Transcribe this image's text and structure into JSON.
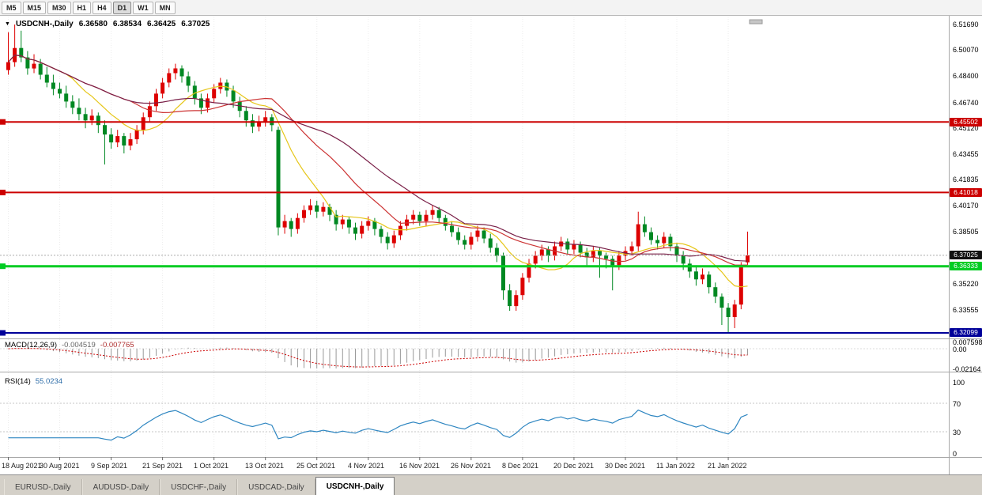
{
  "icons": {
    "chart_menu": "▼"
  },
  "toolbar": {
    "timeframes": [
      "M5",
      "M15",
      "M30",
      "H1",
      "H4",
      "D1",
      "W1",
      "MN"
    ],
    "active": "D1"
  },
  "chart_title": {
    "symbol": "USDCNH-,Daily",
    "open": "6.36580",
    "high": "6.38534",
    "low": "6.36425",
    "close": "6.37025"
  },
  "price_axis": {
    "labels": [
      {
        "text": "6.51690",
        "value": 6.5169
      },
      {
        "text": "6.50070",
        "value": 6.5007
      },
      {
        "text": "6.48400",
        "value": 6.484
      },
      {
        "text": "6.46740",
        "value": 6.4674
      },
      {
        "text": "6.45120",
        "value": 6.4512
      },
      {
        "text": "6.43455",
        "value": 6.43455
      },
      {
        "text": "6.41835",
        "value": 6.41835
      },
      {
        "text": "6.40170",
        "value": 6.4017
      },
      {
        "text": "6.38505",
        "value": 6.38505
      },
      {
        "text": "6.35220",
        "value": 6.3522
      },
      {
        "text": "6.33555",
        "value": 6.33555
      }
    ],
    "badges": [
      {
        "text": "6.45502",
        "value": 6.45502,
        "bg": "#cc0000",
        "fg": "#ffffff",
        "name": "resistance-1"
      },
      {
        "text": "6.41018",
        "value": 6.41018,
        "bg": "#cc0000",
        "fg": "#ffffff",
        "name": "resistance-2"
      },
      {
        "text": "6.37025",
        "value": 6.37025,
        "bg": "#111111",
        "fg": "#ffffff",
        "name": "current-price"
      },
      {
        "text": "6.36333",
        "value": 6.36333,
        "bg": "#00cc22",
        "fg": "#ffffff",
        "name": "support-1"
      },
      {
        "text": "6.32099",
        "value": 6.32099,
        "bg": "#000099",
        "fg": "#ffffff",
        "name": "support-2"
      }
    ]
  },
  "hlines": [
    {
      "value": 6.45502,
      "color": "#cc0000",
      "width": 2,
      "style": "solid",
      "name": "resistance-line-6-45502"
    },
    {
      "value": 6.41018,
      "color": "#cc0000",
      "width": 2,
      "style": "solid",
      "name": "resistance-line-6-41018"
    },
    {
      "value": 6.37025,
      "color": "#aaaaaa",
      "width": 1,
      "style": "dotted",
      "name": "current-price-line"
    },
    {
      "value": 6.36333,
      "color": "#00cc22",
      "width": 3,
      "style": "solid",
      "name": "support-line-6-36333"
    },
    {
      "value": 6.32099,
      "color": "#000099",
      "width": 2,
      "style": "solid",
      "name": "support-line-6-32099"
    }
  ],
  "chart_data": {
    "type": "candlestick",
    "title": "USDCNH-,Daily",
    "up_color": "#dd0000",
    "down_color": "#008822",
    "ylim": [
      6.3175,
      6.5224
    ],
    "x_labels": [
      "18 Aug 2021",
      "30 Aug 2021",
      "9 Sep 2021",
      "21 Sep 2021",
      "1 Oct 2021",
      "13 Oct 2021",
      "25 Oct 2021",
      "4 Nov 2021",
      "16 Nov 2021",
      "26 Nov 2021",
      "8 Dec 2021",
      "20 Dec 2021",
      "30 Dec 2021",
      "11 Jan 2022",
      "21 Jan 2022"
    ],
    "x_label_indices": [
      0,
      8,
      16,
      24,
      32,
      40,
      48,
      56,
      64,
      72,
      80,
      88,
      96,
      104,
      112
    ],
    "moving_averages": [
      {
        "period": 10,
        "color": "#e6c619"
      },
      {
        "period": 20,
        "color": "#cc3333"
      },
      {
        "period": 30,
        "color": "#7a2048"
      }
    ],
    "candles": [
      [
        6.488,
        6.512,
        6.485,
        6.493
      ],
      [
        6.493,
        6.5169,
        6.49,
        6.502
      ],
      [
        6.502,
        6.513,
        6.493,
        6.496
      ],
      [
        6.496,
        6.5,
        6.485,
        6.489
      ],
      [
        6.489,
        6.498,
        6.486,
        6.492
      ],
      [
        6.492,
        6.495,
        6.482,
        6.485
      ],
      [
        6.485,
        6.49,
        6.477,
        6.48
      ],
      [
        6.48,
        6.485,
        6.472,
        6.476
      ],
      [
        6.476,
        6.48,
        6.47,
        6.473
      ],
      [
        6.473,
        6.478,
        6.464,
        6.468
      ],
      [
        6.468,
        6.472,
        6.46,
        6.464
      ],
      [
        6.464,
        6.47,
        6.456,
        6.46
      ],
      [
        6.46,
        6.464,
        6.451,
        6.456
      ],
      [
        6.456,
        6.463,
        6.453,
        6.459
      ],
      [
        6.459,
        6.461,
        6.448,
        6.453
      ],
      [
        6.453,
        6.456,
        6.428,
        6.447
      ],
      [
        6.447,
        6.451,
        6.438,
        6.442
      ],
      [
        6.442,
        6.45,
        6.439,
        6.446
      ],
      [
        6.446,
        6.448,
        6.435,
        6.44
      ],
      [
        6.44,
        6.448,
        6.437,
        6.444
      ],
      [
        6.444,
        6.453,
        6.441,
        6.45
      ],
      [
        6.45,
        6.461,
        6.447,
        6.458
      ],
      [
        6.458,
        6.468,
        6.455,
        6.465
      ],
      [
        6.465,
        6.476,
        6.462,
        6.473
      ],
      [
        6.473,
        6.483,
        6.47,
        6.48
      ],
      [
        6.48,
        6.489,
        6.477,
        6.486
      ],
      [
        6.486,
        6.492,
        6.482,
        6.489
      ],
      [
        6.489,
        6.491,
        6.48,
        6.484
      ],
      [
        6.484,
        6.487,
        6.474,
        6.478
      ],
      [
        6.478,
        6.481,
        6.466,
        6.47
      ],
      [
        6.47,
        6.473,
        6.46,
        6.464
      ],
      [
        6.464,
        6.473,
        6.461,
        6.47
      ],
      [
        6.47,
        6.479,
        6.467,
        6.476
      ],
      [
        6.476,
        6.483,
        6.473,
        6.48
      ],
      [
        6.48,
        6.482,
        6.471,
        6.475
      ],
      [
        6.475,
        6.478,
        6.464,
        6.468
      ],
      [
        6.468,
        6.471,
        6.458,
        6.462
      ],
      [
        6.462,
        6.465,
        6.452,
        6.456
      ],
      [
        6.456,
        6.46,
        6.448,
        6.452
      ],
      [
        6.452,
        6.459,
        6.449,
        6.455
      ],
      [
        6.455,
        6.462,
        6.452,
        6.458
      ],
      [
        6.458,
        6.46,
        6.449,
        6.453
      ],
      [
        6.45,
        6.452,
        6.383,
        6.388
      ],
      [
        6.388,
        6.396,
        6.384,
        6.392
      ],
      [
        6.392,
        6.394,
        6.382,
        6.387
      ],
      [
        6.387,
        6.397,
        6.384,
        6.394
      ],
      [
        6.394,
        6.402,
        6.391,
        6.399
      ],
      [
        6.399,
        6.406,
        6.396,
        6.402
      ],
      [
        6.402,
        6.405,
        6.394,
        6.398
      ],
      [
        6.398,
        6.404,
        6.395,
        6.401
      ],
      [
        6.401,
        6.403,
        6.392,
        6.396
      ],
      [
        6.396,
        6.399,
        6.386,
        6.39
      ],
      [
        6.39,
        6.396,
        6.387,
        6.393
      ],
      [
        6.393,
        6.395,
        6.384,
        6.388
      ],
      [
        6.388,
        6.391,
        6.38,
        6.384
      ],
      [
        6.384,
        6.392,
        6.381,
        6.389
      ],
      [
        6.389,
        6.395,
        6.386,
        6.392
      ],
      [
        6.392,
        6.394,
        6.383,
        6.387
      ],
      [
        6.387,
        6.389,
        6.378,
        6.382
      ],
      [
        6.382,
        6.385,
        6.374,
        6.378
      ],
      [
        6.378,
        6.386,
        6.375,
        6.383
      ],
      [
        6.383,
        6.392,
        6.38,
        6.389
      ],
      [
        6.389,
        6.396,
        6.386,
        6.393
      ],
      [
        6.393,
        6.399,
        6.39,
        6.396
      ],
      [
        6.396,
        6.398,
        6.389,
        6.392
      ],
      [
        6.392,
        6.399,
        6.389,
        6.396
      ],
      [
        6.396,
        6.402,
        6.393,
        6.399
      ],
      [
        6.399,
        6.401,
        6.391,
        6.394
      ],
      [
        6.394,
        6.396,
        6.386,
        6.389
      ],
      [
        6.389,
        6.392,
        6.382,
        6.385
      ],
      [
        6.385,
        6.388,
        6.377,
        6.38
      ],
      [
        6.38,
        6.383,
        6.374,
        6.377
      ],
      [
        6.377,
        6.385,
        6.374,
        6.382
      ],
      [
        6.382,
        6.389,
        6.379,
        6.386
      ],
      [
        6.386,
        6.388,
        6.378,
        6.381
      ],
      [
        6.381,
        6.384,
        6.372,
        6.375
      ],
      [
        6.375,
        6.378,
        6.366,
        6.37
      ],
      [
        6.37,
        6.372,
        6.342,
        6.348
      ],
      [
        6.348,
        6.352,
        6.335,
        6.338
      ],
      [
        6.338,
        6.348,
        6.335,
        6.345
      ],
      [
        6.345,
        6.359,
        6.342,
        6.356
      ],
      [
        6.356,
        6.368,
        6.353,
        6.365
      ],
      [
        6.365,
        6.373,
        6.362,
        6.37
      ],
      [
        6.37,
        6.377,
        6.367,
        6.374
      ],
      [
        6.374,
        6.376,
        6.366,
        6.37
      ],
      [
        6.37,
        6.379,
        6.367,
        6.376
      ],
      [
        6.376,
        6.382,
        6.373,
        6.379
      ],
      [
        6.379,
        6.381,
        6.371,
        6.374
      ],
      [
        6.374,
        6.38,
        6.371,
        6.377
      ],
      [
        6.377,
        6.379,
        6.369,
        6.372
      ],
      [
        6.372,
        6.375,
        6.364,
        6.369
      ],
      [
        6.369,
        6.376,
        6.366,
        6.373
      ],
      [
        6.373,
        6.375,
        6.356,
        6.37
      ],
      [
        6.37,
        6.372,
        6.362,
        6.368
      ],
      [
        6.368,
        6.37,
        6.348,
        6.364
      ],
      [
        6.364,
        6.373,
        6.361,
        6.37
      ],
      [
        6.37,
        6.376,
        6.367,
        6.373
      ],
      [
        6.373,
        6.379,
        6.37,
        6.376
      ],
      [
        6.376,
        6.398,
        6.373,
        6.39
      ],
      [
        6.39,
        6.395,
        6.382,
        6.385
      ],
      [
        6.385,
        6.388,
        6.377,
        6.38
      ],
      [
        6.38,
        6.383,
        6.374,
        6.378
      ],
      [
        6.378,
        6.385,
        6.375,
        6.382
      ],
      [
        6.382,
        6.384,
        6.373,
        6.376
      ],
      [
        6.376,
        6.378,
        6.366,
        6.37
      ],
      [
        6.37,
        6.373,
        6.361,
        6.365
      ],
      [
        6.365,
        6.368,
        6.356,
        6.36
      ],
      [
        6.36,
        6.364,
        6.351,
        6.355
      ],
      [
        6.355,
        6.362,
        6.352,
        6.358
      ],
      [
        6.358,
        6.36,
        6.346,
        6.35
      ],
      [
        6.35,
        6.353,
        6.34,
        6.344
      ],
      [
        6.344,
        6.346,
        6.326,
        6.337
      ],
      [
        6.337,
        6.34,
        6.3215,
        6.331
      ],
      [
        6.331,
        6.342,
        6.324,
        6.339
      ],
      [
        6.339,
        6.366,
        6.336,
        6.363
      ],
      [
        6.3658,
        6.38534,
        6.36425,
        6.37025
      ]
    ]
  },
  "macd_panel": {
    "name": "MACD(12,26,9)",
    "value": "-0.004519",
    "signal_value": "-0.007765",
    "fast": 12,
    "slow": 26,
    "signal": 9,
    "scale_labels": [
      "0.0075981",
      "0.00",
      "-0.02164"
    ],
    "histogram_color": "#999999",
    "signal_color": "#cc0000"
  },
  "rsi_panel": {
    "name": "RSI(14)",
    "value": "55.0234",
    "period": 14,
    "levels": [
      70,
      30
    ],
    "scale_labels": [
      "100",
      "70",
      "30",
      "0"
    ],
    "line_color": "#2e86c1"
  },
  "bottom_tabs": [
    {
      "label": "EURUSD-,Daily",
      "active": false
    },
    {
      "label": "AUDUSD-,Daily",
      "active": false
    },
    {
      "label": "USDCHF-,Daily",
      "active": false
    },
    {
      "label": "USDCAD-,Daily",
      "active": false
    },
    {
      "label": "USDCNH-,Daily",
      "active": true
    }
  ]
}
